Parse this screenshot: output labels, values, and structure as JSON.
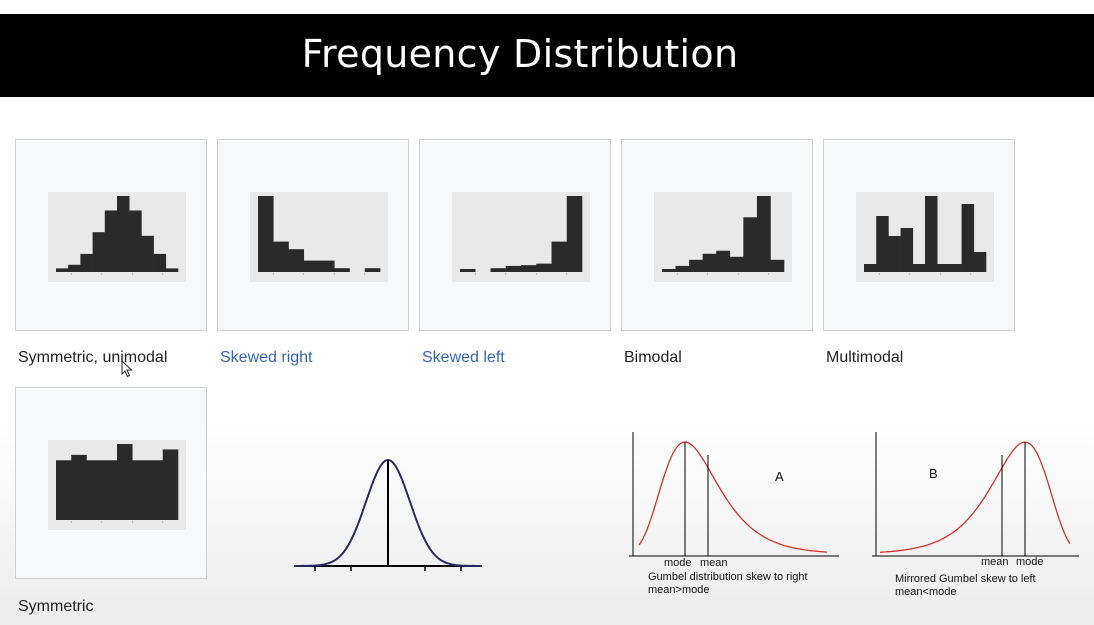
{
  "slide": {
    "title": "Frequency Distribution"
  },
  "thumbnails": [
    {
      "caption": "Symmetric, unimodal",
      "is_link": false,
      "bars": [
        1,
        2,
        5,
        11,
        17,
        21,
        17,
        10,
        5,
        1
      ]
    },
    {
      "caption": "Skewed right",
      "is_link": false,
      "bars": [
        20,
        8,
        6,
        3,
        3,
        1,
        0,
        1
      ]
    },
    {
      "caption": "Skewed left",
      "is_link": false,
      "bars": [
        0.4,
        0,
        0.5,
        0.8,
        0.9,
        1.1,
        4,
        10
      ]
    },
    {
      "caption": "Bimodal",
      "is_link": false,
      "bars": [
        1,
        2,
        4,
        6,
        7,
        5,
        18,
        25,
        4
      ]
    },
    {
      "caption": "Multimodal",
      "is_link": false,
      "bars": [
        2,
        14,
        9,
        11,
        2,
        19,
        2,
        2,
        17,
        5
      ]
    },
    {
      "caption": "Symmetric",
      "is_link": false,
      "bars": [
        11,
        12,
        11,
        11,
        14,
        11,
        11,
        13
      ]
    }
  ],
  "link_color": "#3366bb",
  "panels": {
    "gumbel_right": {
      "letter": "A",
      "mode_label": "mode",
      "mean_label": "mean",
      "caption_line1": "Gumbel distribution skew to right",
      "caption_line2": "mean>mode"
    },
    "gumbel_left": {
      "letter": "B",
      "mean_label": "mean",
      "mode_label": "mode",
      "caption_line1": "Mirrored Gumbel skew to left",
      "caption_line2": "mean<mode"
    }
  },
  "colors": {
    "title_bar": "#000000",
    "bars": "#2a2a2a",
    "plot_bg": "#e9e9e9",
    "normal_curve": "#2a2a66",
    "gumbel_curve": "#d9302c"
  }
}
